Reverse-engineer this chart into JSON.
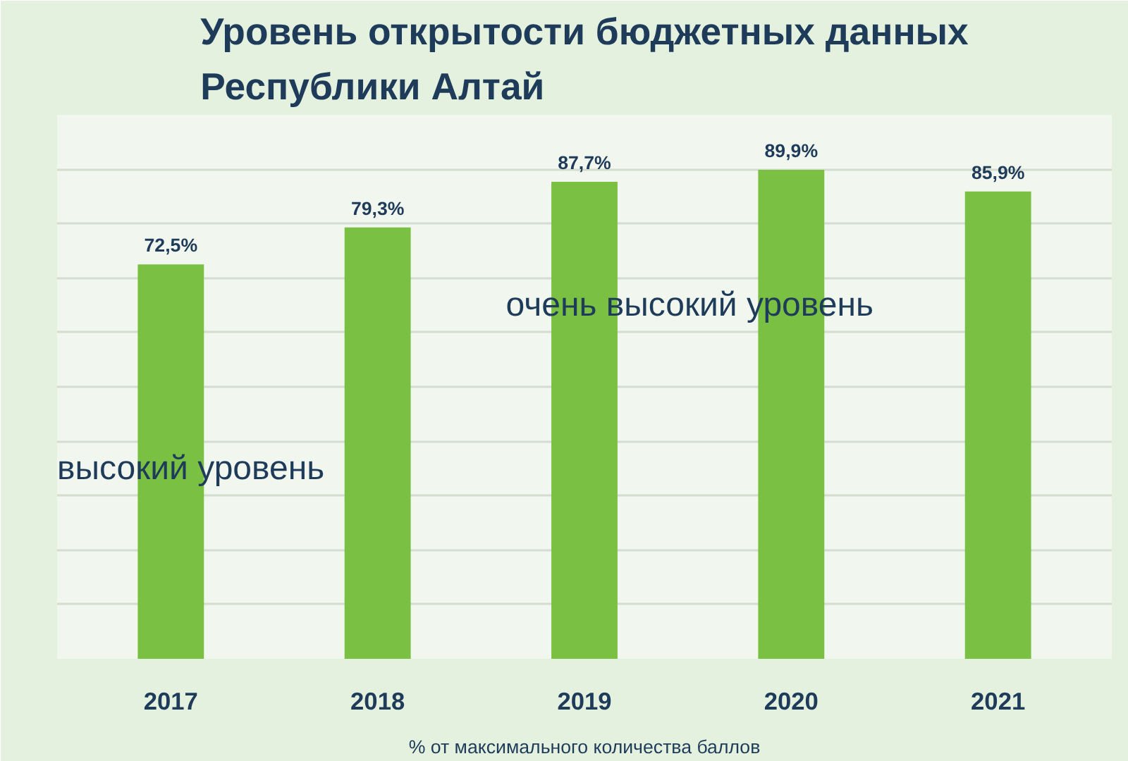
{
  "chart_data": {
    "type": "bar",
    "title": "Уровень открытости бюджетных данных Республики Алтай",
    "categories": [
      "2017",
      "2018",
      "2019",
      "2020",
      "2021"
    ],
    "values": [
      72.5,
      79.3,
      87.7,
      89.9,
      85.9
    ],
    "value_labels": [
      "72,5%",
      "79,3%",
      "87,7%",
      "89,9%",
      "85,9%"
    ],
    "color": "#7ac143",
    "xlabel": "% от максимального количества баллов",
    "annotations": [
      "высокий уровень",
      "очень высокий уровень"
    ],
    "ylim": [
      0,
      100
    ],
    "yticks": [
      {
        "value": 0,
        "label": null
      },
      {
        "value": 10,
        "label": null
      },
      {
        "value": 20,
        "label": null
      },
      {
        "value": 30,
        "label": null
      },
      {
        "value": 40,
        "label": null
      },
      {
        "value": 50,
        "label": null
      },
      {
        "value": 60,
        "label": null
      },
      {
        "value": 70,
        "label": null
      },
      {
        "value": 80,
        "label": null
      },
      {
        "value": 90,
        "label": null
      },
      {
        "value": 100,
        "label": null
      }
    ],
    "tick_labels": "x",
    "grid": "y"
  }
}
